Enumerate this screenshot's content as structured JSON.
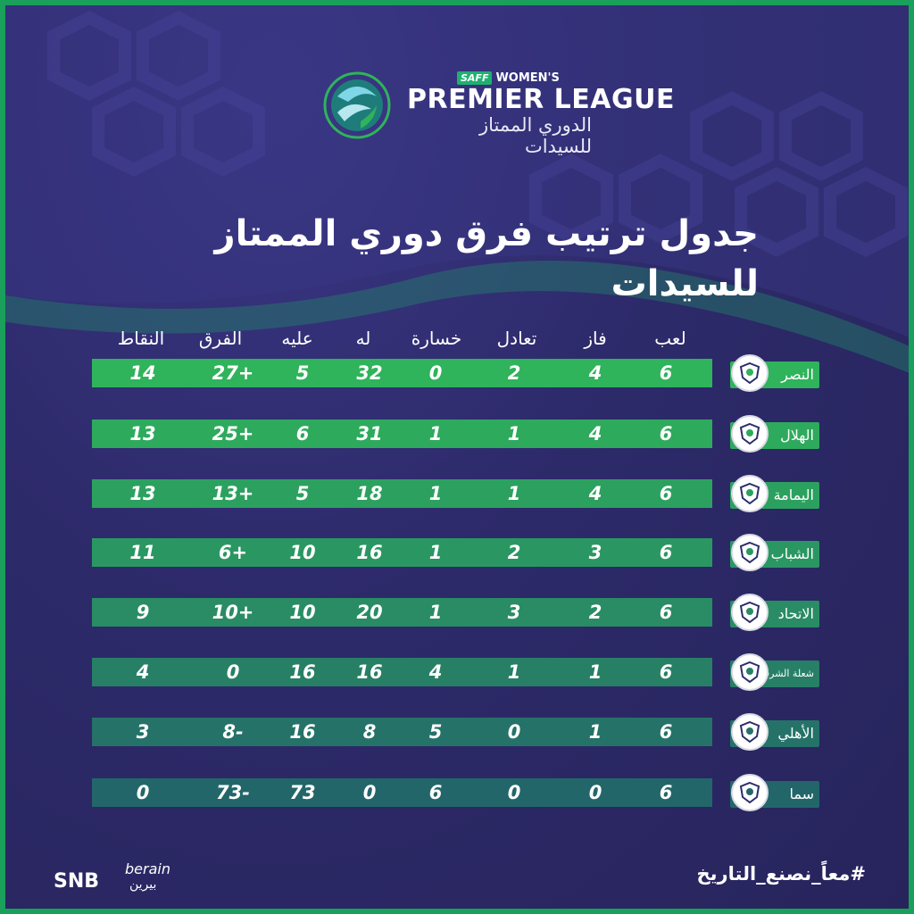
{
  "brand": {
    "saff": "SAFF",
    "womens": "WOMEN'S",
    "league_en": "PREMIER LEAGUE",
    "league_ar": "الدوري الممتاز للسيدات"
  },
  "title": "جدول ترتيب فرق دوري الممتاز للسيدات",
  "headers": {
    "played": "لعب",
    "won": "فاز",
    "drawn": "تعادل",
    "lost": "خسارة",
    "goals_for": "له",
    "goals_against": "عليه",
    "goal_diff": "الفرق",
    "points": "النقاط"
  },
  "teams": [
    {
      "name": "النصر",
      "played": "6",
      "won": "4",
      "drawn": "2",
      "lost": "0",
      "goals_for": "32",
      "goals_against": "5",
      "goal_diff": "27+",
      "points": "14"
    },
    {
      "name": "الهلال",
      "played": "6",
      "won": "4",
      "drawn": "1",
      "lost": "1",
      "goals_for": "31",
      "goals_against": "6",
      "goal_diff": "25+",
      "points": "13"
    },
    {
      "name": "اليمامة",
      "played": "6",
      "won": "4",
      "drawn": "1",
      "lost": "1",
      "goals_for": "18",
      "goals_against": "5",
      "goal_diff": "13+",
      "points": "13"
    },
    {
      "name": "الشباب",
      "played": "6",
      "won": "3",
      "drawn": "2",
      "lost": "1",
      "goals_for": "16",
      "goals_against": "10",
      "goal_diff": "6+",
      "points": "11"
    },
    {
      "name": "الاتحاد",
      "played": "6",
      "won": "2",
      "drawn": "3",
      "lost": "1",
      "goals_for": "20",
      "goals_against": "10",
      "goal_diff": "10+",
      "points": "9"
    },
    {
      "name": "شعلة الشرقية",
      "played": "6",
      "won": "1",
      "drawn": "1",
      "lost": "4",
      "goals_for": "16",
      "goals_against": "16",
      "goal_diff": "0",
      "points": "4"
    },
    {
      "name": "الأهلي",
      "played": "6",
      "won": "1",
      "drawn": "0",
      "lost": "5",
      "goals_for": "8",
      "goals_against": "16",
      "goal_diff": "8-",
      "points": "3"
    },
    {
      "name": "سما",
      "played": "6",
      "won": "0",
      "drawn": "0",
      "lost": "6",
      "goals_for": "0",
      "goals_against": "73",
      "goal_diff": "73-",
      "points": "0"
    }
  ],
  "footer": {
    "hashtag": "#معاً_نصنع_التاريخ",
    "sponsor1": "SNB",
    "sponsor2": "berain",
    "sponsor2_ar": "بيرين"
  },
  "colors": {
    "background": "#2e2a6b",
    "accent": "#1aa05a",
    "row_colors": [
      "#2fb35b",
      "#2eaa5c",
      "#2ca15f",
      "#2a9762",
      "#298c64",
      "#277f66",
      "#257268",
      "#23666a"
    ]
  },
  "icons": [
    "league-logo-icon",
    "team-crest-icon"
  ]
}
